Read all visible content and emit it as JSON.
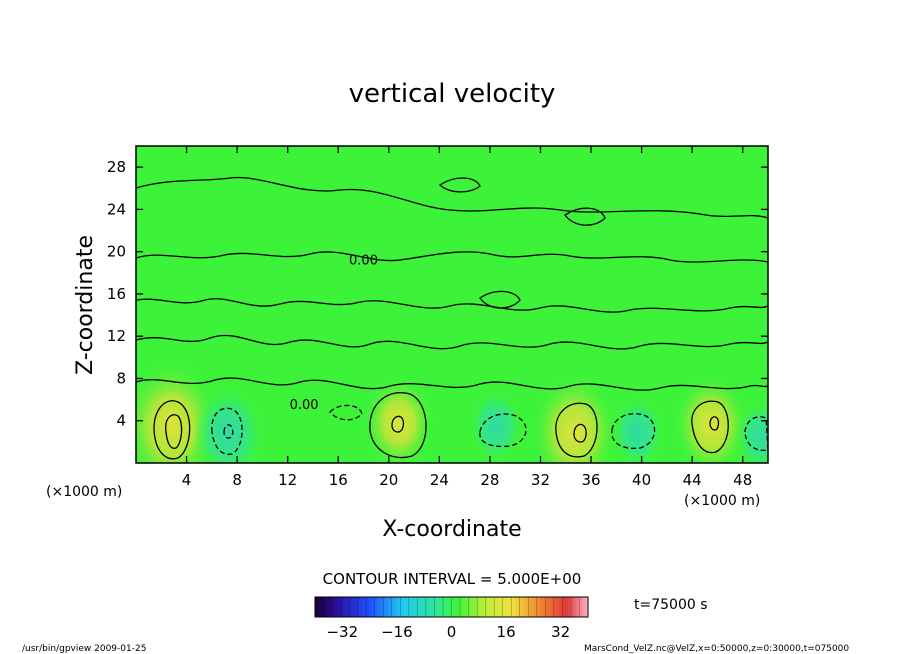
{
  "chart_data": {
    "type": "heatmap",
    "title": "vertical velocity",
    "xlabel": "X-coordinate",
    "ylabel": "Z-coordinate",
    "x_unit": "(×1000 m)",
    "y_unit": "(×1000 m)",
    "xlim": [
      0,
      50
    ],
    "ylim": [
      0,
      30
    ],
    "x_ticks": [
      4,
      8,
      12,
      16,
      20,
      24,
      28,
      32,
      36,
      40,
      44,
      48
    ],
    "y_ticks": [
      4,
      8,
      12,
      16,
      20,
      24,
      28
    ],
    "contour_interval_text": "CONTOUR INTERVAL = 5.000E+00",
    "contour_labels": [
      {
        "text": "0.00",
        "x": 18.0,
        "z": 18.8
      },
      {
        "text": "0.00",
        "x": 13.3,
        "z": 5.1
      }
    ],
    "colorbar": {
      "min": -40,
      "max": 40,
      "ticks": [
        -32,
        -16,
        0,
        16,
        32
      ],
      "tick_labels": [
        "−32",
        "−16",
        "0",
        "16",
        "32"
      ]
    },
    "cells": [
      {
        "x": 2.8,
        "z": 3.5,
        "value": 22
      },
      {
        "x": 7.3,
        "z": 2.8,
        "value": -12
      },
      {
        "x": 20.8,
        "z": 3.8,
        "value": 12
      },
      {
        "x": 28.5,
        "z": 3.5,
        "value": -6
      },
      {
        "x": 34.7,
        "z": 2.9,
        "value": 18
      },
      {
        "x": 39.7,
        "z": 2.9,
        "value": -6
      },
      {
        "x": 45.5,
        "z": 3.6,
        "value": 14
      },
      {
        "x": 49.5,
        "z": 2.5,
        "value": -6
      }
    ],
    "time_text": "t=75000 s"
  },
  "footer": {
    "left": "/usr/bin/gpview   2009-01-25",
    "right": "MarsCond_VelZ.nc@VelZ,x=0:50000,z=0:30000,t=075000"
  },
  "colors": {
    "background_field": "#3df33a",
    "contour": "#000000"
  }
}
